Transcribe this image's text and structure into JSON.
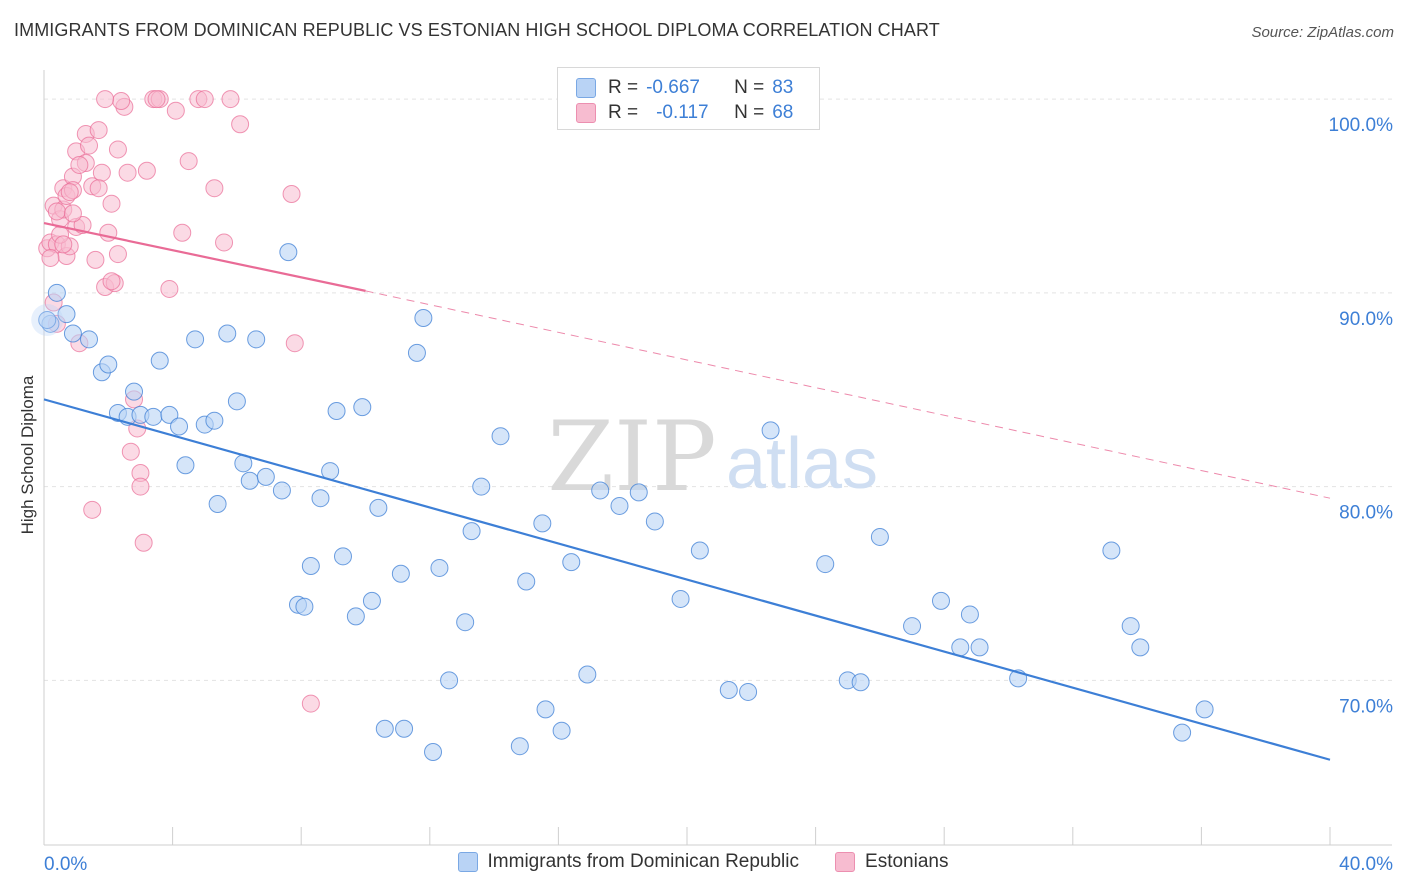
{
  "title": "IMMIGRANTS FROM DOMINICAN REPUBLIC VS ESTONIAN HIGH SCHOOL DIPLOMA CORRELATION CHART",
  "source": "Source: ZipAtlas.com",
  "watermark": {
    "zip": "ZIP",
    "atlas": "atlas"
  },
  "colors": {
    "blue": "#3d7fd6",
    "blue_fill": "#b9d3f5",
    "pink": "#e96b96",
    "pink_fill": "#f7bcd0",
    "grid": "#e3e3e3"
  },
  "stats": {
    "blue": {
      "r_label": "R =",
      "r_value": "-0.667",
      "n_label": "N =",
      "n_value": "83"
    },
    "pink": {
      "r_label": "R =",
      "r_value": "-0.117",
      "n_label": "N =",
      "n_value": "68"
    }
  },
  "chart_data": {
    "type": "scatter",
    "title": "IMMIGRANTS FROM DOMINICAN REPUBLIC VS ESTONIAN HIGH SCHOOL DIPLOMA CORRELATION CHART",
    "xlabel": "",
    "ylabel": "High School Diploma",
    "xlim": [
      0,
      40
    ],
    "ylim": [
      61.5,
      101.5
    ],
    "x_tick_labels": [
      "0.0%",
      "40.0%"
    ],
    "y_ticks": [
      70,
      80,
      90,
      100
    ],
    "y_tick_labels": [
      "70.0%",
      "80.0%",
      "90.0%",
      "100.0%"
    ],
    "grid": true,
    "legend_position": "bottom",
    "series": [
      {
        "name": "Immigrants from Dominican Republic",
        "color": "#3d7fd6",
        "trend": {
          "x0": 0,
          "y0": 84.5,
          "x1": 40,
          "y1": 65.9
        },
        "points": [
          [
            0.2,
            88.4
          ],
          [
            0.4,
            90.0
          ],
          [
            0.7,
            88.9
          ],
          [
            0.9,
            87.9
          ],
          [
            1.4,
            87.6
          ],
          [
            1.8,
            85.9
          ],
          [
            2.0,
            86.3
          ],
          [
            2.3,
            83.8
          ],
          [
            2.6,
            83.6
          ],
          [
            2.8,
            84.9
          ],
          [
            3.0,
            83.7
          ],
          [
            3.4,
            83.6
          ],
          [
            3.6,
            86.5
          ],
          [
            3.9,
            83.7
          ],
          [
            4.2,
            83.1
          ],
          [
            4.4,
            81.1
          ],
          [
            4.7,
            87.6
          ],
          [
            5.0,
            83.2
          ],
          [
            5.3,
            83.4
          ],
          [
            5.4,
            79.1
          ],
          [
            5.7,
            87.9
          ],
          [
            6.0,
            84.4
          ],
          [
            6.2,
            81.2
          ],
          [
            6.4,
            80.3
          ],
          [
            6.6,
            87.6
          ],
          [
            6.9,
            80.5
          ],
          [
            7.4,
            79.8
          ],
          [
            7.6,
            92.1
          ],
          [
            7.9,
            73.9
          ],
          [
            8.1,
            73.8
          ],
          [
            8.3,
            75.9
          ],
          [
            8.6,
            79.4
          ],
          [
            8.9,
            80.8
          ],
          [
            9.1,
            83.9
          ],
          [
            9.3,
            76.4
          ],
          [
            9.7,
            73.3
          ],
          [
            9.9,
            84.1
          ],
          [
            10.2,
            74.1
          ],
          [
            10.4,
            78.9
          ],
          [
            10.6,
            67.5
          ],
          [
            11.1,
            75.5
          ],
          [
            11.2,
            67.5
          ],
          [
            11.6,
            86.9
          ],
          [
            11.8,
            88.7
          ],
          [
            12.1,
            66.3
          ],
          [
            12.3,
            75.8
          ],
          [
            12.6,
            70.0
          ],
          [
            13.1,
            73.0
          ],
          [
            13.3,
            77.7
          ],
          [
            13.6,
            80.0
          ],
          [
            14.2,
            82.6
          ],
          [
            14.8,
            66.6
          ],
          [
            15.0,
            75.1
          ],
          [
            15.5,
            78.1
          ],
          [
            15.6,
            68.5
          ],
          [
            16.1,
            67.4
          ],
          [
            16.4,
            76.1
          ],
          [
            16.9,
            70.3
          ],
          [
            17.3,
            79.8
          ],
          [
            17.9,
            79.0
          ],
          [
            18.5,
            79.7
          ],
          [
            19.0,
            78.2
          ],
          [
            19.8,
            74.2
          ],
          [
            20.4,
            76.7
          ],
          [
            21.3,
            69.5
          ],
          [
            21.9,
            69.4
          ],
          [
            22.6,
            82.9
          ],
          [
            24.3,
            76.0
          ],
          [
            25.0,
            70.0
          ],
          [
            25.4,
            69.9
          ],
          [
            26.0,
            77.4
          ],
          [
            27.0,
            72.8
          ],
          [
            27.9,
            74.1
          ],
          [
            28.5,
            71.7
          ],
          [
            28.8,
            73.4
          ],
          [
            29.1,
            71.7
          ],
          [
            30.3,
            70.1
          ],
          [
            33.2,
            76.7
          ],
          [
            33.8,
            72.8
          ],
          [
            34.1,
            71.7
          ],
          [
            35.4,
            67.3
          ],
          [
            36.1,
            68.5
          ],
          [
            0.1,
            88.6
          ]
        ]
      },
      {
        "name": "Estonians",
        "color": "#e96b96",
        "trend": {
          "x0": 0,
          "y0": 93.6,
          "x1": 10,
          "y1": 90.1,
          "dash_to_x": 40,
          "dash_to_y": 79.4
        },
        "points": [
          [
            0.1,
            92.3
          ],
          [
            0.2,
            92.6
          ],
          [
            0.3,
            94.5
          ],
          [
            0.3,
            89.5
          ],
          [
            0.4,
            88.4
          ],
          [
            0.4,
            92.5
          ],
          [
            0.5,
            93.8
          ],
          [
            0.6,
            95.4
          ],
          [
            0.6,
            94.3
          ],
          [
            0.7,
            91.9
          ],
          [
            0.7,
            95.0
          ],
          [
            0.8,
            92.4
          ],
          [
            0.9,
            96.0
          ],
          [
            0.9,
            95.3
          ],
          [
            1.0,
            93.4
          ],
          [
            1.0,
            97.3
          ],
          [
            1.1,
            87.4
          ],
          [
            1.2,
            93.5
          ],
          [
            1.3,
            98.2
          ],
          [
            1.3,
            96.7
          ],
          [
            1.4,
            97.6
          ],
          [
            1.5,
            95.5
          ],
          [
            1.6,
            91.7
          ],
          [
            1.7,
            98.4
          ],
          [
            1.8,
            96.2
          ],
          [
            1.9,
            90.3
          ],
          [
            2.0,
            93.1
          ],
          [
            2.1,
            94.6
          ],
          [
            2.2,
            90.5
          ],
          [
            2.3,
            97.4
          ],
          [
            2.3,
            92.0
          ],
          [
            2.5,
            99.6
          ],
          [
            2.6,
            96.2
          ],
          [
            2.7,
            81.8
          ],
          [
            2.8,
            84.5
          ],
          [
            2.9,
            83.0
          ],
          [
            3.0,
            80.7
          ],
          [
            3.0,
            80.0
          ],
          [
            3.1,
            77.1
          ],
          [
            3.2,
            96.3
          ],
          [
            3.4,
            100.0
          ],
          [
            3.6,
            100.0
          ],
          [
            3.9,
            90.2
          ],
          [
            4.1,
            99.4
          ],
          [
            4.3,
            93.1
          ],
          [
            4.8,
            100.0
          ],
          [
            5.0,
            100.0
          ],
          [
            5.3,
            95.4
          ],
          [
            5.6,
            92.6
          ],
          [
            5.8,
            100.0
          ],
          [
            6.1,
            98.7
          ],
          [
            7.7,
            95.1
          ],
          [
            7.8,
            87.4
          ],
          [
            8.3,
            68.8
          ],
          [
            0.4,
            94.2
          ],
          [
            1.5,
            78.8
          ],
          [
            2.4,
            99.9
          ],
          [
            1.9,
            100.0
          ],
          [
            0.8,
            95.2
          ],
          [
            0.5,
            93.0
          ],
          [
            3.5,
            100.0
          ],
          [
            1.1,
            96.6
          ],
          [
            0.6,
            92.5
          ],
          [
            2.1,
            90.6
          ],
          [
            0.2,
            91.8
          ],
          [
            4.5,
            96.8
          ],
          [
            0.9,
            94.1
          ],
          [
            1.7,
            95.4
          ]
        ]
      }
    ]
  }
}
